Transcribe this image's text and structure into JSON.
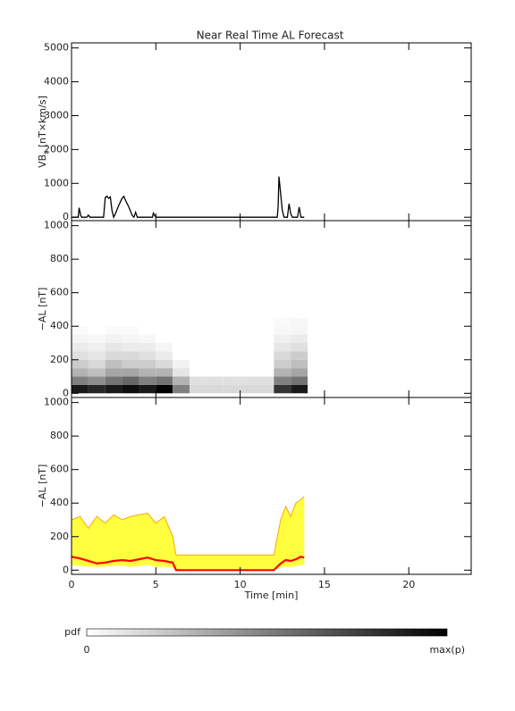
{
  "title": "Near Real Time AL Forecast",
  "chart_data": [
    {
      "type": "line",
      "ylabel_main": "VB",
      "ylabel_sub": "s",
      "ylabel_unit": " [nT×km/s]",
      "xlim": [
        0,
        23.7
      ],
      "xticks": [
        0,
        5,
        10,
        15,
        20
      ],
      "ylim": [
        -100,
        5150
      ],
      "yticks": [
        0,
        1000,
        2000,
        3000,
        4000,
        5000
      ],
      "x": [
        0,
        0.4,
        0.45,
        0.55,
        0.6,
        0.9,
        1.0,
        1.1,
        1.9,
        2.0,
        2.1,
        2.2,
        2.3,
        2.4,
        2.5,
        2.6,
        2.8,
        3.0,
        3.1,
        3.2,
        3.4,
        3.6,
        3.7,
        3.8,
        3.9,
        4.8,
        4.85,
        5.0,
        12.2,
        12.25,
        12.3,
        12.4,
        12.5,
        12.6,
        12.8,
        12.9,
        13.0,
        13.1,
        13.4,
        13.5,
        13.6,
        13.8
      ],
      "series": [
        {
          "color": "#000000",
          "values": [
            0,
            0,
            280,
            50,
            0,
            0,
            60,
            0,
            0,
            580,
            620,
            560,
            600,
            200,
            0,
            100,
            350,
            560,
            620,
            500,
            300,
            50,
            0,
            150,
            0,
            0,
            120,
            0,
            0,
            300,
            1200,
            700,
            200,
            0,
            0,
            400,
            100,
            0,
            0,
            300,
            0,
            0
          ]
        }
      ]
    },
    {
      "type": "heatmap",
      "ylabel": "−AL [nT]",
      "xlim": [
        0,
        23.7
      ],
      "xticks": [
        0,
        5,
        10,
        15,
        20
      ],
      "ylim": [
        -25,
        1030
      ],
      "yticks": [
        0,
        200,
        400,
        600,
        800,
        1000
      ],
      "x_bins": [
        0,
        1,
        2,
        3,
        4,
        5,
        6,
        7,
        8,
        9,
        10,
        11,
        12,
        13,
        14
      ],
      "y_bins": [
        0,
        50,
        100,
        150,
        200,
        250,
        300,
        350,
        400,
        450
      ],
      "z": [
        [
          0.9,
          0.85,
          0.9,
          0.95,
          0.9,
          1.0,
          0.5,
          0.15,
          0.15,
          0.15,
          0.15,
          0.15,
          0.8,
          0.9
        ],
        [
          0.5,
          0.45,
          0.55,
          0.6,
          0.5,
          0.55,
          0.3,
          0.12,
          0.12,
          0.12,
          0.12,
          0.12,
          0.5,
          0.55
        ],
        [
          0.3,
          0.25,
          0.35,
          0.35,
          0.3,
          0.3,
          0.1,
          0,
          0,
          0,
          0,
          0,
          0.3,
          0.35
        ],
        [
          0.2,
          0.15,
          0.25,
          0.2,
          0.2,
          0.15,
          0.05,
          0,
          0,
          0,
          0,
          0,
          0.2,
          0.25
        ],
        [
          0.12,
          0.1,
          0.15,
          0.15,
          0.12,
          0.08,
          0,
          0,
          0,
          0,
          0,
          0,
          0.15,
          0.2
        ],
        [
          0.08,
          0.06,
          0.1,
          0.08,
          0.08,
          0.04,
          0,
          0,
          0,
          0,
          0,
          0,
          0.1,
          0.12
        ],
        [
          0.04,
          0.03,
          0.05,
          0.04,
          0.03,
          0,
          0,
          0,
          0,
          0,
          0,
          0,
          0.06,
          0.08
        ],
        [
          0.02,
          0,
          0.02,
          0.02,
          0,
          0,
          0,
          0,
          0,
          0,
          0,
          0,
          0.03,
          0.04
        ],
        [
          0,
          0,
          0,
          0,
          0,
          0,
          0,
          0,
          0,
          0,
          0,
          0,
          0.02,
          0.03
        ]
      ]
    },
    {
      "type": "band",
      "ylabel": "−AL [nT]",
      "xlabel": "Time [min]",
      "xlim": [
        0,
        23.7
      ],
      "xticks": [
        0,
        5,
        10,
        15,
        20
      ],
      "ylim": [
        -25,
        1030
      ],
      "yticks": [
        0,
        200,
        400,
        600,
        800,
        1000
      ],
      "x": [
        0,
        0.5,
        1,
        1.5,
        2,
        2.5,
        3,
        3.5,
        4,
        4.5,
        5,
        5.5,
        6,
        6.2,
        7,
        8,
        9,
        10,
        11,
        12,
        12.4,
        12.7,
        13,
        13.3,
        13.6,
        13.8
      ],
      "series": [
        {
          "color": "#ffff40",
          "edge_color": "#ffa500",
          "lower": [
            30,
            25,
            20,
            20,
            20,
            25,
            25,
            20,
            25,
            30,
            20,
            20,
            15,
            0,
            0,
            0,
            0,
            0,
            0,
            0,
            15,
            20,
            20,
            25,
            30,
            30
          ],
          "upper": [
            300,
            320,
            250,
            320,
            280,
            330,
            300,
            320,
            330,
            340,
            280,
            320,
            200,
            90,
            90,
            90,
            90,
            90,
            90,
            90,
            300,
            380,
            320,
            400,
            420,
            440
          ]
        },
        {
          "color": "#ff0000",
          "values": [
            80,
            70,
            55,
            40,
            45,
            55,
            60,
            55,
            65,
            75,
            60,
            55,
            45,
            0,
            0,
            0,
            0,
            0,
            0,
            0,
            40,
            60,
            55,
            65,
            80,
            75
          ]
        }
      ]
    }
  ],
  "colorbar": {
    "label": "pdf",
    "min_label": "0",
    "max_label": "max(p)"
  }
}
